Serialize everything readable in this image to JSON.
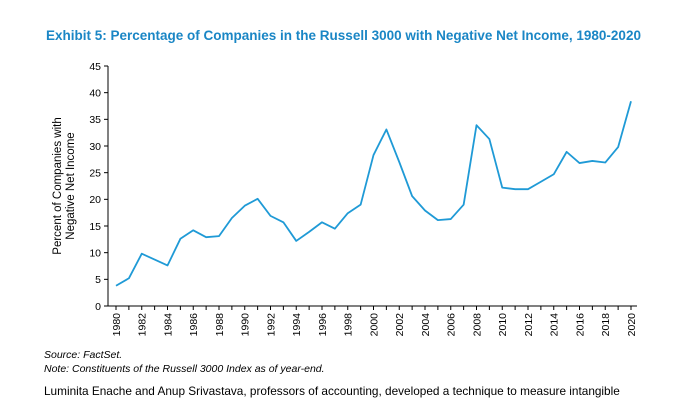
{
  "title": "Exhibit 5: Percentage of Companies in the Russell 3000 with Negative Net Income, 1980-2020",
  "source": "Source: FactSet.",
  "note": "Note: Constituents of the Russell 3000 Index as of year-end.",
  "body_text": "Luminita Enache and Anup Srivastava, professors of accounting, developed a technique to measure intangible",
  "colors": {
    "title": "#1a86c5",
    "line": "#1f9ad6",
    "axis": "#000000"
  },
  "chart_data": {
    "type": "line",
    "title": "Exhibit 5: Percentage of Companies in the Russell 3000 with Negative Net Income, 1980-2020",
    "xlabel": "",
    "ylabel_lines": [
      "Percent of Companies with",
      "Negative Net Income"
    ],
    "ylim": [
      0,
      45
    ],
    "yticks": [
      0,
      5,
      10,
      15,
      20,
      25,
      30,
      35,
      40,
      45
    ],
    "xlim": [
      1980,
      2020
    ],
    "xticks": [
      1980,
      1982,
      1984,
      1986,
      1988,
      1990,
      1992,
      1994,
      1996,
      1998,
      2000,
      2002,
      2004,
      2006,
      2008,
      2010,
      2012,
      2014,
      2016,
      2018,
      2020
    ],
    "grid": false,
    "legend": "none",
    "x": [
      1980,
      1981,
      1982,
      1983,
      1984,
      1985,
      1986,
      1987,
      1988,
      1989,
      1990,
      1991,
      1992,
      1993,
      1994,
      1995,
      1996,
      1997,
      1998,
      1999,
      2000,
      2001,
      2002,
      2003,
      2004,
      2005,
      2006,
      2007,
      2008,
      2009,
      2010,
      2011,
      2012,
      2013,
      2014,
      2015,
      2016,
      2017,
      2018,
      2019,
      2020
    ],
    "series": [
      {
        "values": [
          3.8,
          5.2,
          9.8,
          8.7,
          7.6,
          12.6,
          14.2,
          12.9,
          13.1,
          16.5,
          18.8,
          20.1,
          16.9,
          15.7,
          12.2,
          13.9,
          15.7,
          14.5,
          17.4,
          19.0,
          28.3,
          33.1,
          27.0,
          20.6,
          17.9,
          16.1,
          16.3,
          19.0,
          33.9,
          31.3,
          22.2,
          21.9,
          21.9,
          23.3,
          24.7,
          28.9,
          26.8,
          27.2,
          26.9,
          29.8,
          38.4
        ]
      }
    ]
  }
}
